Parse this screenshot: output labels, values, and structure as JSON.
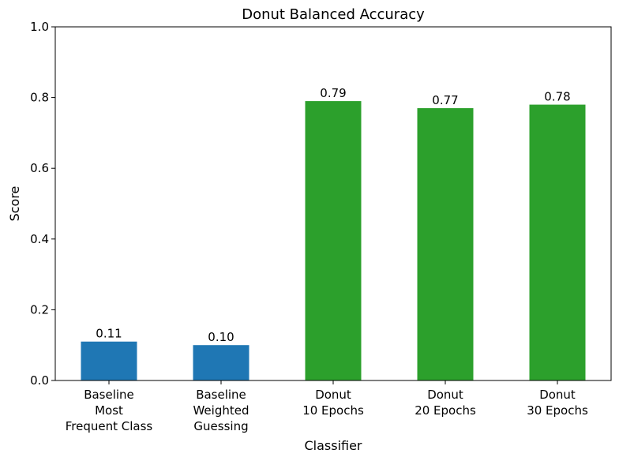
{
  "chart_data": {
    "type": "bar",
    "title": "Donut Balanced Accuracy",
    "xlabel": "Classifier",
    "ylabel": "Score",
    "ylim": [
      0,
      1.0
    ],
    "yticks": [
      "0.0",
      "0.2",
      "0.4",
      "0.6",
      "0.8",
      "1.0"
    ],
    "grid": false,
    "legend": "none",
    "categories": [
      [
        "Baseline",
        "Most",
        "Frequent Class"
      ],
      [
        "Baseline",
        "Weighted",
        "Guessing"
      ],
      [
        "Donut",
        "10 Epochs"
      ],
      [
        "Donut",
        "20 Epochs"
      ],
      [
        "Donut",
        "30 Epochs"
      ]
    ],
    "values": [
      0.11,
      0.1,
      0.79,
      0.77,
      0.78
    ],
    "value_labels": [
      "0.11",
      "0.10",
      "0.79",
      "0.77",
      "0.78"
    ],
    "colors": [
      "#1f77b4",
      "#1f77b4",
      "#2ca02c",
      "#2ca02c",
      "#2ca02c"
    ]
  }
}
